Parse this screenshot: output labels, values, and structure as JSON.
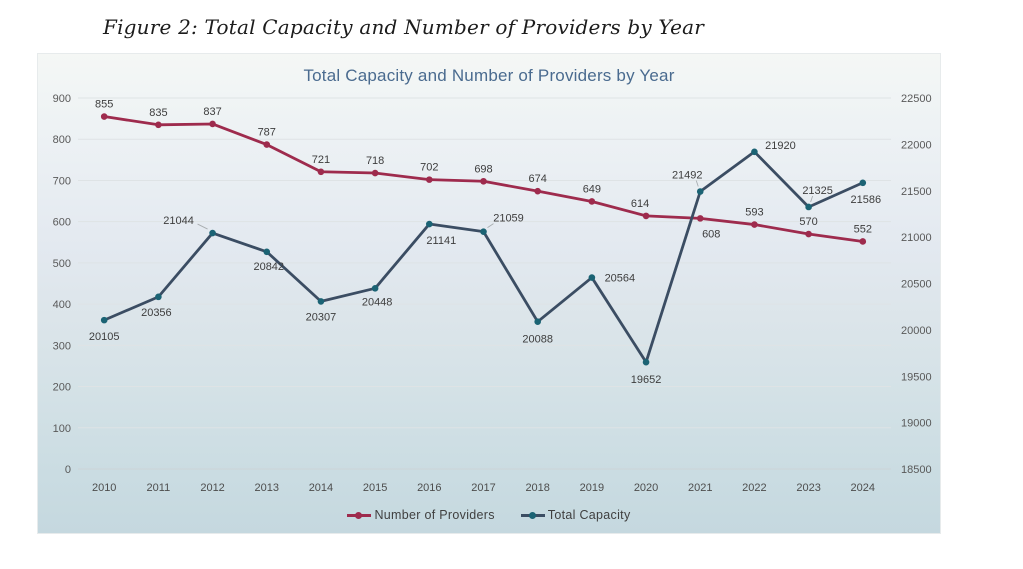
{
  "page": {
    "caption": "Figure 2: Total Capacity and Number of Providers by Year"
  },
  "chart_data": {
    "type": "line",
    "title": "Total Capacity and Number of Providers by Year",
    "categories": [
      "2010",
      "2011",
      "2012",
      "2013",
      "2014",
      "2015",
      "2016",
      "2017",
      "2018",
      "2019",
      "2020",
      "2021",
      "2022",
      "2023",
      "2024"
    ],
    "series": [
      {
        "name": "Number of Providers",
        "axis": "left",
        "color": "#9E2B4D",
        "marker_color": "#9E2B4D",
        "values": [
          855,
          835,
          837,
          787,
          721,
          718,
          702,
          698,
          674,
          649,
          614,
          608,
          593,
          570,
          552
        ]
      },
      {
        "name": "Total Capacity",
        "axis": "right",
        "color": "#3B4D63",
        "marker_color": "#1B6374",
        "values": [
          20105,
          20356,
          21044,
          20842,
          20307,
          20448,
          21141,
          21059,
          20088,
          20564,
          19652,
          21492,
          21920,
          21325,
          21586
        ]
      }
    ],
    "left_axis": {
      "min": 0,
      "max": 900,
      "step": 100,
      "ticks": [
        "0",
        "100",
        "200",
        "300",
        "400",
        "500",
        "600",
        "700",
        "800",
        "900"
      ]
    },
    "right_axis": {
      "min": 18500,
      "max": 22500,
      "step": 500,
      "ticks": [
        "18500",
        "19000",
        "19500",
        "20000",
        "20500",
        "21000",
        "21500",
        "22000",
        "22500"
      ]
    },
    "grid": true,
    "legend_position": "bottom",
    "data_labels": true,
    "colors": {
      "title": "#4a6b8f",
      "axis_labels": "#595959",
      "x_labels": "#4d4d4d",
      "data_labels": "#3d3d3d",
      "gridline": "#dee3e5"
    }
  }
}
